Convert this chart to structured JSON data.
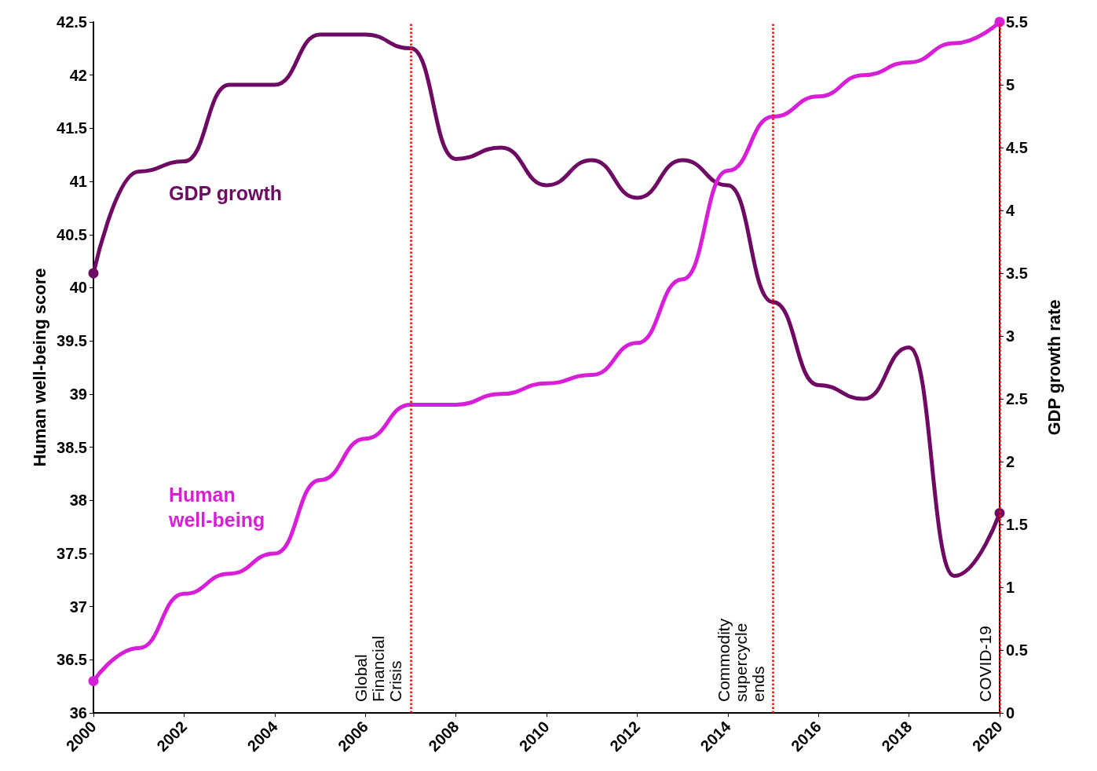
{
  "chart_data": {
    "type": "line",
    "ylabel": "Human well-being score",
    "y2label": "GDP growth rate",
    "x": [
      2000,
      2001,
      2002,
      2003,
      2004,
      2005,
      2006,
      2007,
      2008,
      2009,
      2010,
      2011,
      2012,
      2013,
      2014,
      2015,
      2016,
      2017,
      2018,
      2019,
      2020
    ],
    "series": [
      {
        "name": "GDP growth",
        "color": "#6e0a63",
        "axis": "y2",
        "values": [
          3.5,
          4.31,
          4.39,
          5.0,
          5.0,
          5.4,
          5.4,
          5.29,
          4.41,
          4.5,
          4.2,
          4.4,
          4.1,
          4.4,
          4.2,
          3.27,
          2.61,
          2.5,
          2.91,
          1.09,
          1.59
        ]
      },
      {
        "name": "Human well-being",
        "color": "#d81fd8",
        "values": [
          36.3,
          36.61,
          37.12,
          37.31,
          37.5,
          38.19,
          38.58,
          38.9,
          38.9,
          39.0,
          39.1,
          39.18,
          39.48,
          40.08,
          41.1,
          41.61,
          41.8,
          42.0,
          42.12,
          42.3,
          42.5
        ]
      }
    ],
    "xlim": [
      2000,
      2020
    ],
    "xticks": [
      2000,
      2002,
      2004,
      2006,
      2008,
      2010,
      2012,
      2014,
      2016,
      2018,
      2020
    ],
    "ylim": [
      36,
      42.5
    ],
    "yticks": [
      36,
      36.5,
      37,
      37.5,
      38,
      38.5,
      39,
      39.5,
      40,
      40.5,
      41,
      41.5,
      42,
      42.5
    ],
    "y2lim": [
      0,
      5.5
    ],
    "y2ticks": [
      0,
      0.5,
      1,
      1.5,
      2,
      2.5,
      3,
      3.5,
      4,
      4.5,
      5,
      5.5
    ],
    "ref_lines": [
      {
        "axis": "x",
        "value": 2007,
        "label": "Global Financial Crisis",
        "color": "#ff0000",
        "line_style": "dotted"
      },
      {
        "axis": "x",
        "value": 2015,
        "label": "Commodity supercycle ends",
        "color": "#ff0000",
        "line_style": "dotted"
      },
      {
        "axis": "x",
        "value": 2020,
        "label": "COVID-19",
        "color": "#ff0000",
        "line_style": "dotted"
      }
    ],
    "grid": false,
    "legend": false,
    "line_style": "solid"
  }
}
